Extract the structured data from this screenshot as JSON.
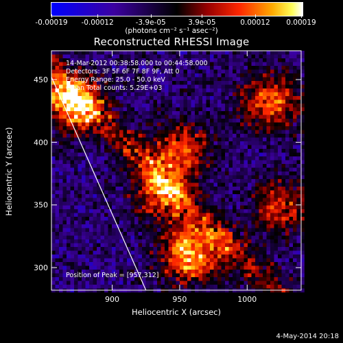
{
  "chart_data": {
    "type": "heatmap",
    "title": "Reconstructed RHESSI Image",
    "xlabel": "Heliocentric X (arcsec)",
    "ylabel": "Heliocentric Y (arcsec)",
    "xlim": [
      855,
      1040
    ],
    "ylim": [
      282,
      473
    ],
    "x_ticks": [
      900,
      950,
      1000
    ],
    "y_ticks": [
      300,
      350,
      400,
      450
    ],
    "colorbar": {
      "tick_labels": [
        "-0.00019",
        "-0.00012",
        "-3.9e-05",
        "3.9e-05",
        "0.00012",
        "0.00019"
      ],
      "range": [
        -0.00019,
        0.00019
      ],
      "unit_label": "(photons cm⁻² s⁻¹ asec⁻²)"
    },
    "annotations": {
      "time_range": "14-Mar-2012 00:38:58.000 to 00:44:58.000",
      "detectors": "Detectors: 3F 5F 6F 7F 8F 9F, Att 0",
      "energy_range": "Energy Range: 25.0 - 50.0 keV",
      "method": "Clean     Total counts: 5.29E+03",
      "peak_position": "Position of Peak = [957,312]"
    },
    "limb_line": {
      "x": [
        855,
        925
      ],
      "y": [
        452,
        282
      ]
    },
    "hot_regions": [
      {
        "x": 870,
        "y": 432,
        "intensity": 0.9
      },
      {
        "x": 1015,
        "y": 432,
        "intensity": 0.75
      },
      {
        "x": 950,
        "y": 395,
        "intensity": 0.65
      },
      {
        "x": 935,
        "y": 360,
        "intensity": 0.6
      },
      {
        "x": 957,
        "y": 312,
        "intensity": 1.0
      },
      {
        "x": 1025,
        "y": 350,
        "intensity": 0.6
      }
    ]
  },
  "footer": {
    "date": "4-May-2014 20:18"
  }
}
